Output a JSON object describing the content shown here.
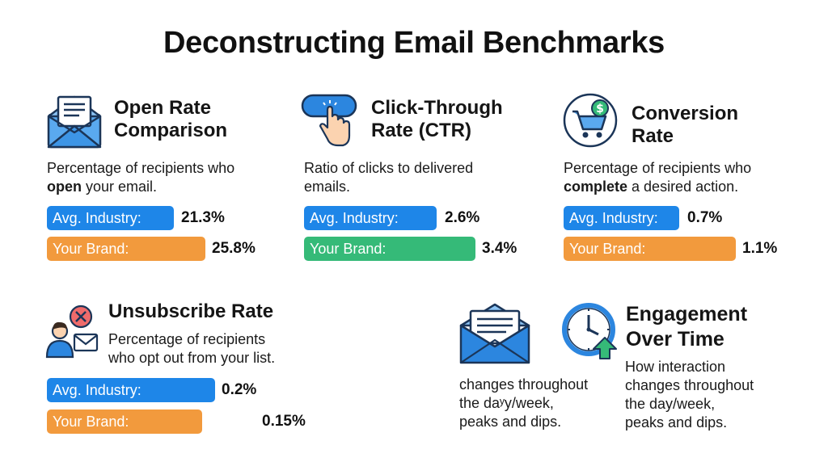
{
  "title": "Deconstructing Email Benchmarks",
  "sections": {
    "open_rate": {
      "title_lines": [
        "Open Rate",
        "Comparison"
      ],
      "desc_pre": "Percentage of recipients who",
      "desc_bold": "open",
      "desc_post": " your email.",
      "industry_label": "Avg. Industry:",
      "industry_value": "21.3%",
      "brand_label": "Your Brand:",
      "brand_value": "25.8%",
      "icon": "envelope-letter-icon"
    },
    "ctr": {
      "title_lines": [
        "Click-Through",
        "Rate (CTR)"
      ],
      "desc_lines": [
        "Ratio of clicks to delivered",
        "emails."
      ],
      "industry_label": "Avg. Industry:",
      "industry_value": "2.6%",
      "brand_label": "Your Brand:",
      "brand_value": "3.4%",
      "icon": "click-button-icon"
    },
    "conversion": {
      "title_lines": [
        "Conversion",
        "Rate"
      ],
      "desc_pre": "Percentage of recipients who",
      "desc_bold": "complete",
      "desc_post": " a desired action.",
      "industry_label": "Avg. Industry:",
      "industry_value": "0.7%",
      "brand_label": "Your Brand:",
      "brand_value": "1.1%",
      "icon": "shopping-cart-dollar-icon"
    },
    "unsubscribe": {
      "title": "Unsubscribe Rate",
      "desc_lines": [
        "Percentage of recipients",
        "who opt out from your list."
      ],
      "industry_label": "Avg. Industry:",
      "industry_value": "0.2%",
      "brand_label": "Your Brand:",
      "brand_value": "0.15%",
      "icon": "user-unsubscribe-icon"
    },
    "engagement": {
      "title_lines": [
        "Engagement",
        "Over Time"
      ],
      "desc_lines": [
        "How interaction",
        "changes throughout",
        "the day/week,",
        "peaks and dips."
      ],
      "left_desc_lines": [
        "changes throughout",
        "the daʸy/week,",
        "peaks and dips."
      ],
      "icons": [
        "open-envelope-icon",
        "clock-arrow-icon"
      ]
    }
  },
  "colors": {
    "industry": "#1e86e8",
    "brand_orange": "#f29a3d",
    "brand_green": "#35ba78"
  }
}
